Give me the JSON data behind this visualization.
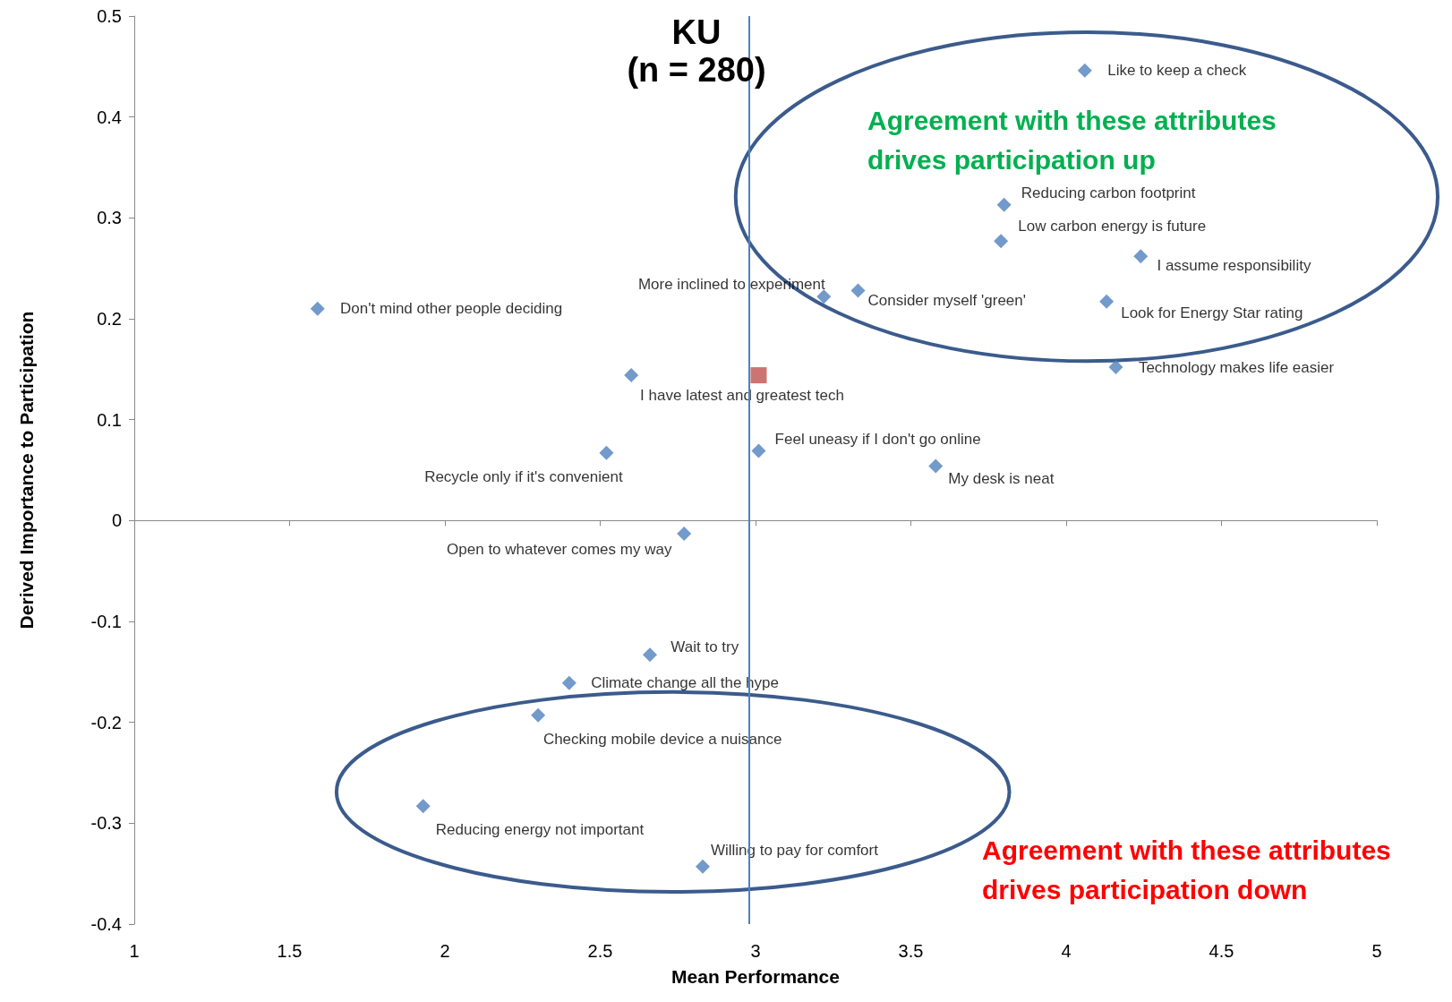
{
  "chart_data": {
    "type": "scatter",
    "title": "KU",
    "subtitle": "(n = 280)",
    "xlabel": "Mean Performance",
    "ylabel": "Derived Importance to Participation",
    "marker": "diamond",
    "xlim": [
      1,
      5
    ],
    "xticks": [
      1,
      1.5,
      2,
      2.5,
      3,
      3.5,
      4,
      4.5,
      5
    ],
    "ylim": [
      -0.4,
      0.5
    ],
    "yticks": [
      -0.4,
      -0.3,
      -0.2,
      -0.1,
      0,
      0.1,
      0.2,
      0.3,
      0.4,
      0.5
    ],
    "ref_lines": [
      {
        "axis": "x",
        "value": 2.98,
        "color": "#4f81bd"
      }
    ],
    "annotations": [
      "Agreement with these attributes\ndrives participation up",
      "Agreement with these attributes\ndrives participation down"
    ],
    "series": [
      {
        "name": "Like to keep a check",
        "color": "#4f81bd",
        "x": [
          4.06
        ],
        "values": [
          0.446
        ]
      },
      {
        "name": "Reducing carbon footprint",
        "color": "#4f81bd",
        "x": [
          3.8
        ],
        "values": [
          0.313
        ]
      },
      {
        "name": "Low carbon energy is future",
        "color": "#4f81bd",
        "x": [
          3.79
        ],
        "values": [
          0.277
        ]
      },
      {
        "name": "I assume responsibility",
        "color": "#4f81bd",
        "x": [
          4.24
        ],
        "values": [
          0.262
        ]
      },
      {
        "name": "Look for Energy Star rating",
        "color": "#4f81bd",
        "x": [
          4.13
        ],
        "values": [
          0.217
        ]
      },
      {
        "name": "Technology makes life easier",
        "color": "#4f81bd",
        "x": [
          4.16
        ],
        "values": [
          0.152
        ]
      },
      {
        "name": "More inclined to experiment",
        "color": "#4f81bd",
        "x": [
          3.22
        ],
        "values": [
          0.222
        ]
      },
      {
        "name": "Consider myself 'green'",
        "color": "#4f81bd",
        "x": [
          3.33
        ],
        "values": [
          0.228
        ]
      },
      {
        "name": "Don't mind other people deciding",
        "color": "#4f81bd",
        "x": [
          1.59
        ],
        "values": [
          0.21
        ]
      },
      {
        "name": "I have latest and greatest tech",
        "color": "#4f81bd",
        "x": [
          2.6
        ],
        "values": [
          0.144
        ]
      },
      {
        "name": "Feel uneasy if I don't go online",
        "color": "#4f81bd",
        "x": [
          3.01
        ],
        "values": [
          0.069
        ]
      },
      {
        "name": "Recycle only if it's convenient",
        "color": "#4f81bd",
        "x": [
          2.52
        ],
        "values": [
          0.067
        ]
      },
      {
        "name": "My desk is neat",
        "color": "#4f81bd",
        "x": [
          3.58
        ],
        "values": [
          0.054
        ]
      },
      {
        "name": "Open to whatever comes my way",
        "color": "#4f81bd",
        "x": [
          2.77
        ],
        "values": [
          -0.013
        ]
      },
      {
        "name": "Wait to try",
        "color": "#4f81bd",
        "x": [
          2.66
        ],
        "values": [
          -0.133
        ]
      },
      {
        "name": "Climate change all the hype",
        "color": "#4f81bd",
        "x": [
          2.4
        ],
        "values": [
          -0.161
        ]
      },
      {
        "name": "Checking mobile device a nuisance",
        "color": "#4f81bd",
        "x": [
          2.3
        ],
        "values": [
          -0.193
        ]
      },
      {
        "name": "Reducing energy not important",
        "color": "#4f81bd",
        "x": [
          1.93
        ],
        "values": [
          -0.283
        ]
      },
      {
        "name": "Willing to pay for comfort",
        "color": "#4f81bd",
        "x": [
          2.83
        ],
        "values": [
          -0.343
        ]
      },
      {
        "color": "#c0504d",
        "marker": "square",
        "x": [
          3.01
        ],
        "values": [
          0.144
        ]
      }
    ]
  }
}
